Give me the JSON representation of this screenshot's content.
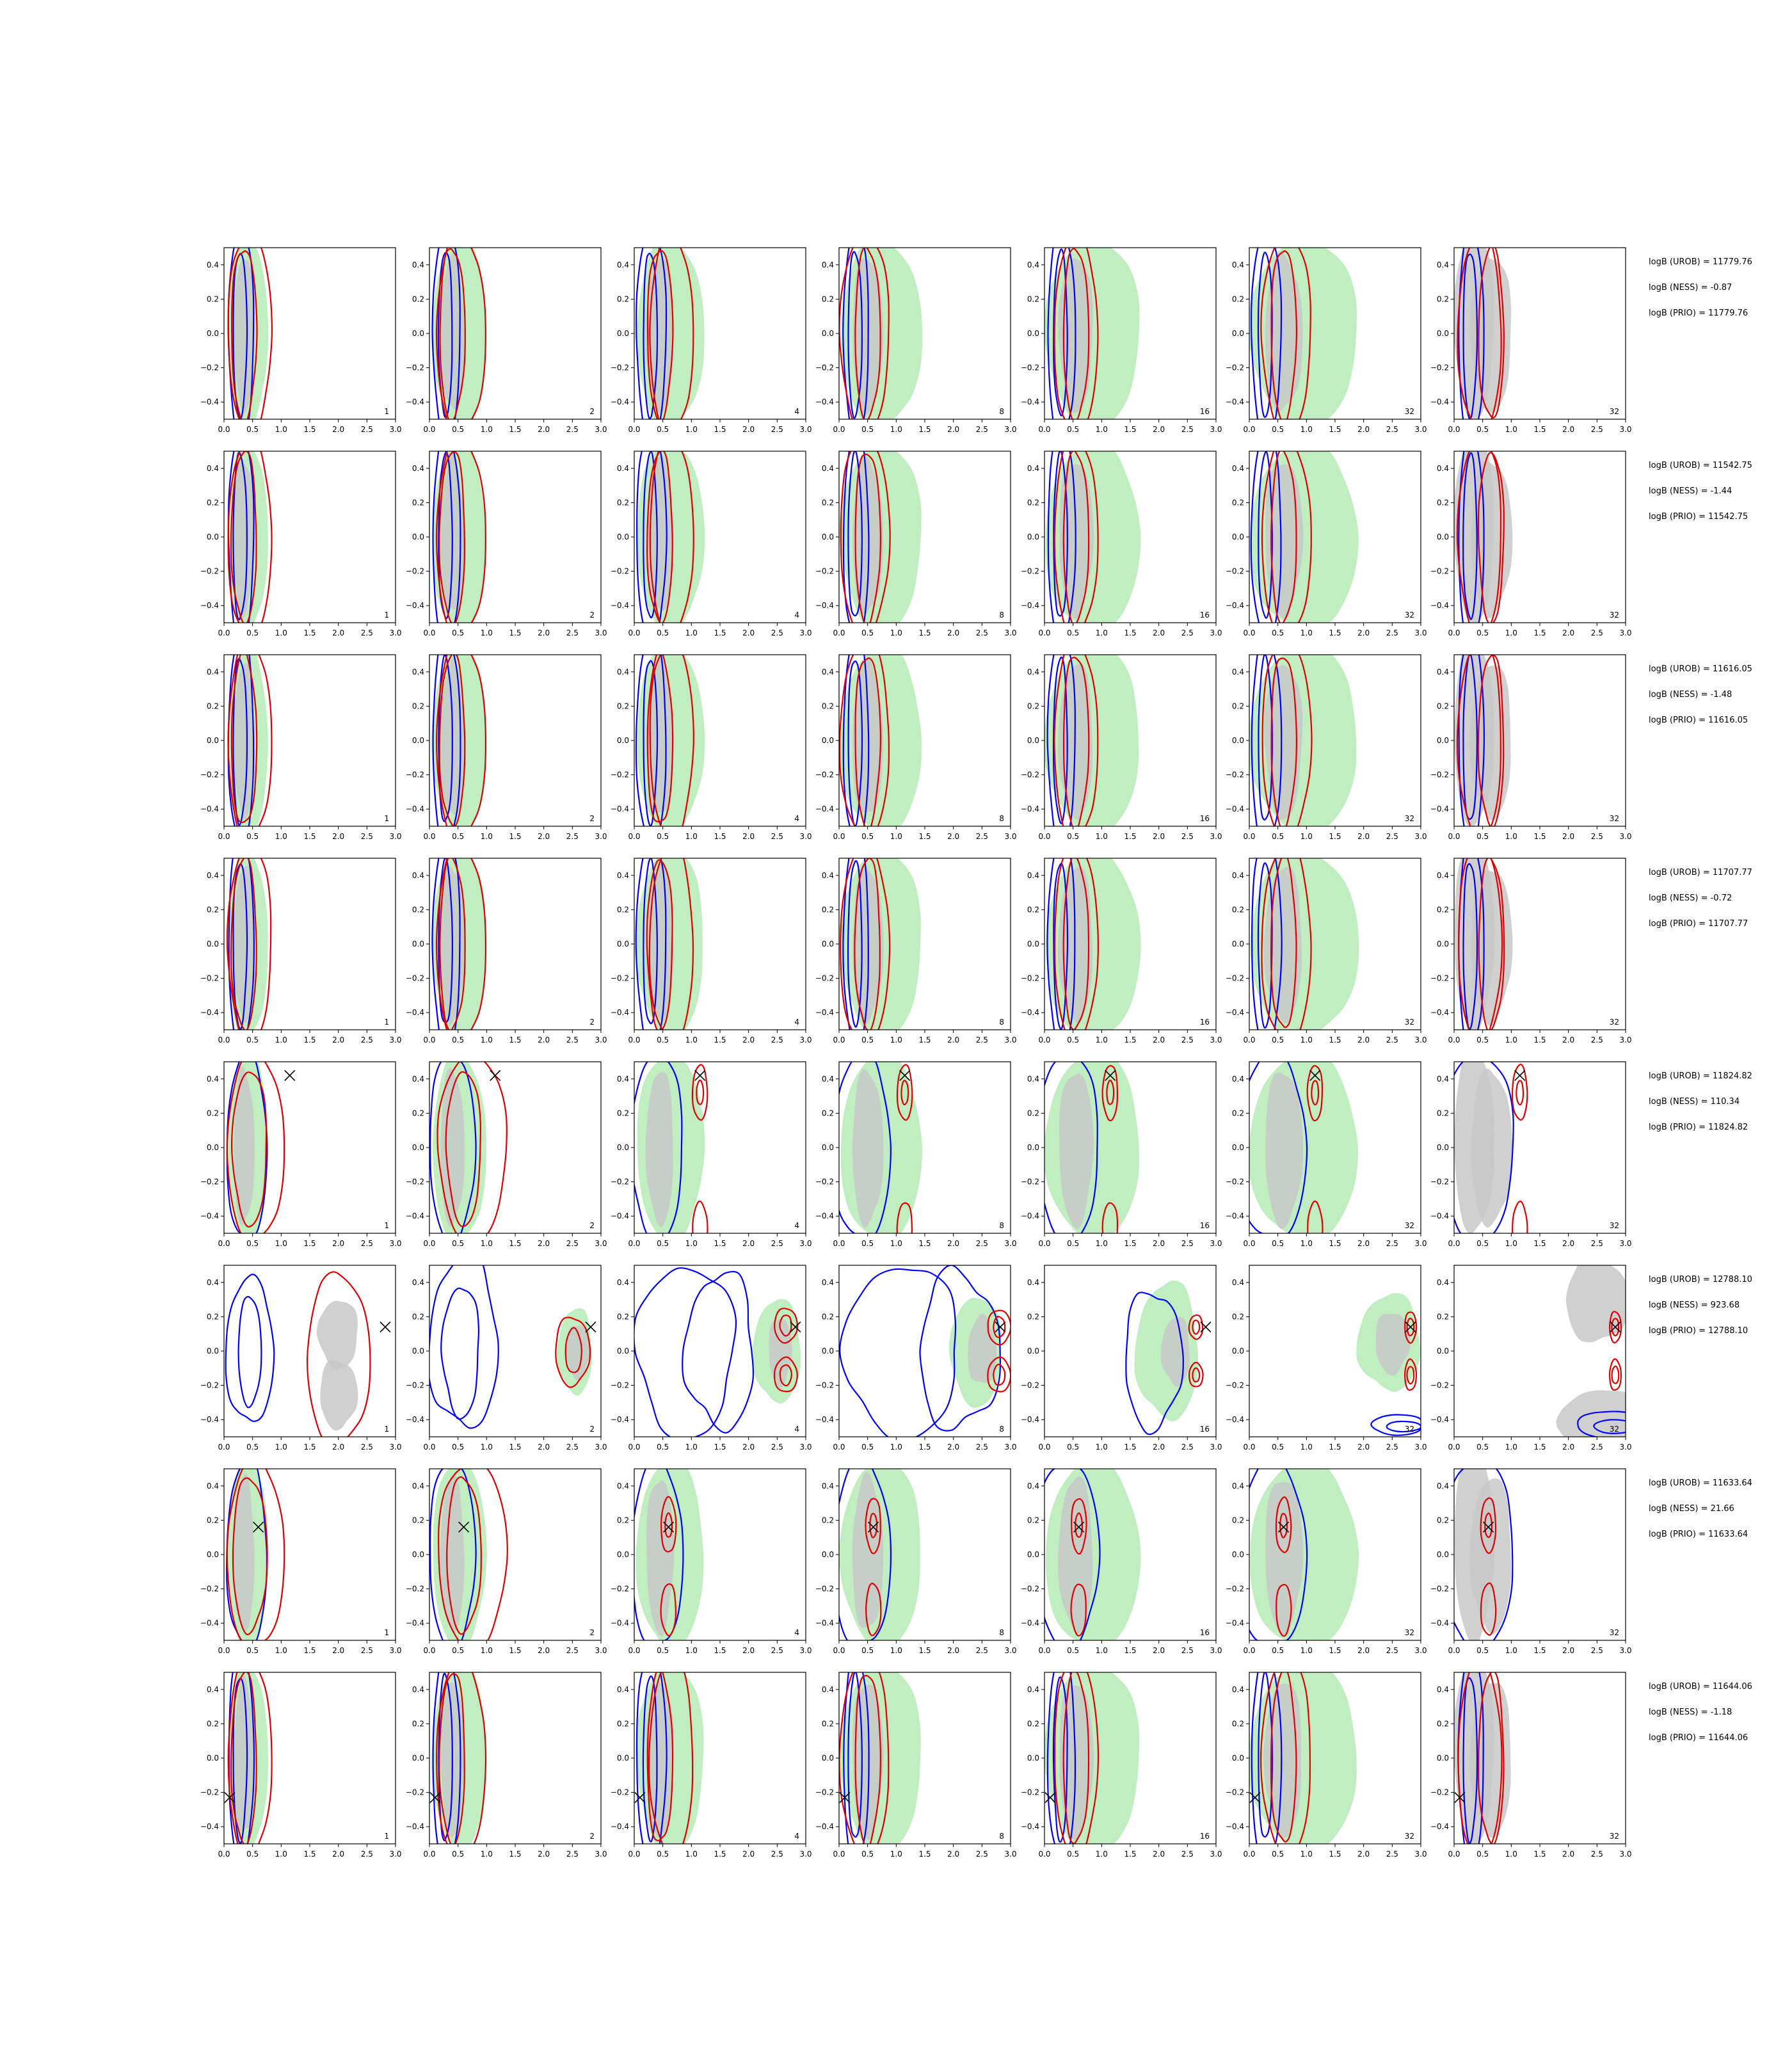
{
  "chart_data": {
    "type": "contour",
    "grid": {
      "rows": 8,
      "cols": 7
    },
    "xlim": [
      0.0,
      3.0
    ],
    "ylim": [
      -0.5,
      0.5
    ],
    "x_ticks": [
      "0.0",
      "0.5",
      "1.0",
      "1.5",
      "2.0",
      "2.5",
      "3.0"
    ],
    "y_ticks": [
      "−0.4",
      "−0.2",
      "0.0",
      "0.2",
      "0.4"
    ],
    "column_labels": [
      "1",
      "2",
      "4",
      "8",
      "16",
      "32",
      "32"
    ],
    "colors": {
      "blue": "#0000ff",
      "red": "#e00000",
      "green": "#b6ebb6",
      "gray": "#c8c8c8"
    },
    "marker": "x-mark",
    "rows": [
      {
        "logB": [
          "logB (UROB) = 11779.76",
          "logB (NESS) = -0.87",
          "logB (PRIO) = 11779.76"
        ],
        "marker": null
      },
      {
        "logB": [
          "logB (UROB) = 11542.75",
          "logB (NESS) = -1.44",
          "logB (PRIO) = 11542.75"
        ],
        "marker": null
      },
      {
        "logB": [
          "logB (UROB) = 11616.05",
          "logB (NESS) = -1.48",
          "logB (PRIO) = 11616.05"
        ],
        "marker": null
      },
      {
        "logB": [
          "logB (UROB) = 11707.77",
          "logB (NESS) = -0.72",
          "logB (PRIO) = 11707.77"
        ],
        "marker": null
      },
      {
        "logB": [
          "logB (UROB) = 11824.82",
          "logB (NESS) = 110.34",
          "logB (PRIO) = 11824.82"
        ],
        "marker": [
          1.15,
          0.42
        ]
      },
      {
        "logB": [
          "logB (UROB) = 12788.10",
          "logB (NESS) = 923.68",
          "logB (PRIO) = 12788.10"
        ],
        "marker": [
          2.82,
          0.14
        ]
      },
      {
        "logB": [
          "logB (UROB) = 11633.64",
          "logB (NESS) = 21.66",
          "logB (PRIO) = 11633.64"
        ],
        "marker": [
          0.6,
          0.16
        ]
      },
      {
        "logB": [
          "logB (UROB) = 11644.06",
          "logB (NESS) = -1.18",
          "logB (PRIO) = 11644.06"
        ],
        "marker": [
          0.1,
          -0.23
        ]
      }
    ]
  }
}
